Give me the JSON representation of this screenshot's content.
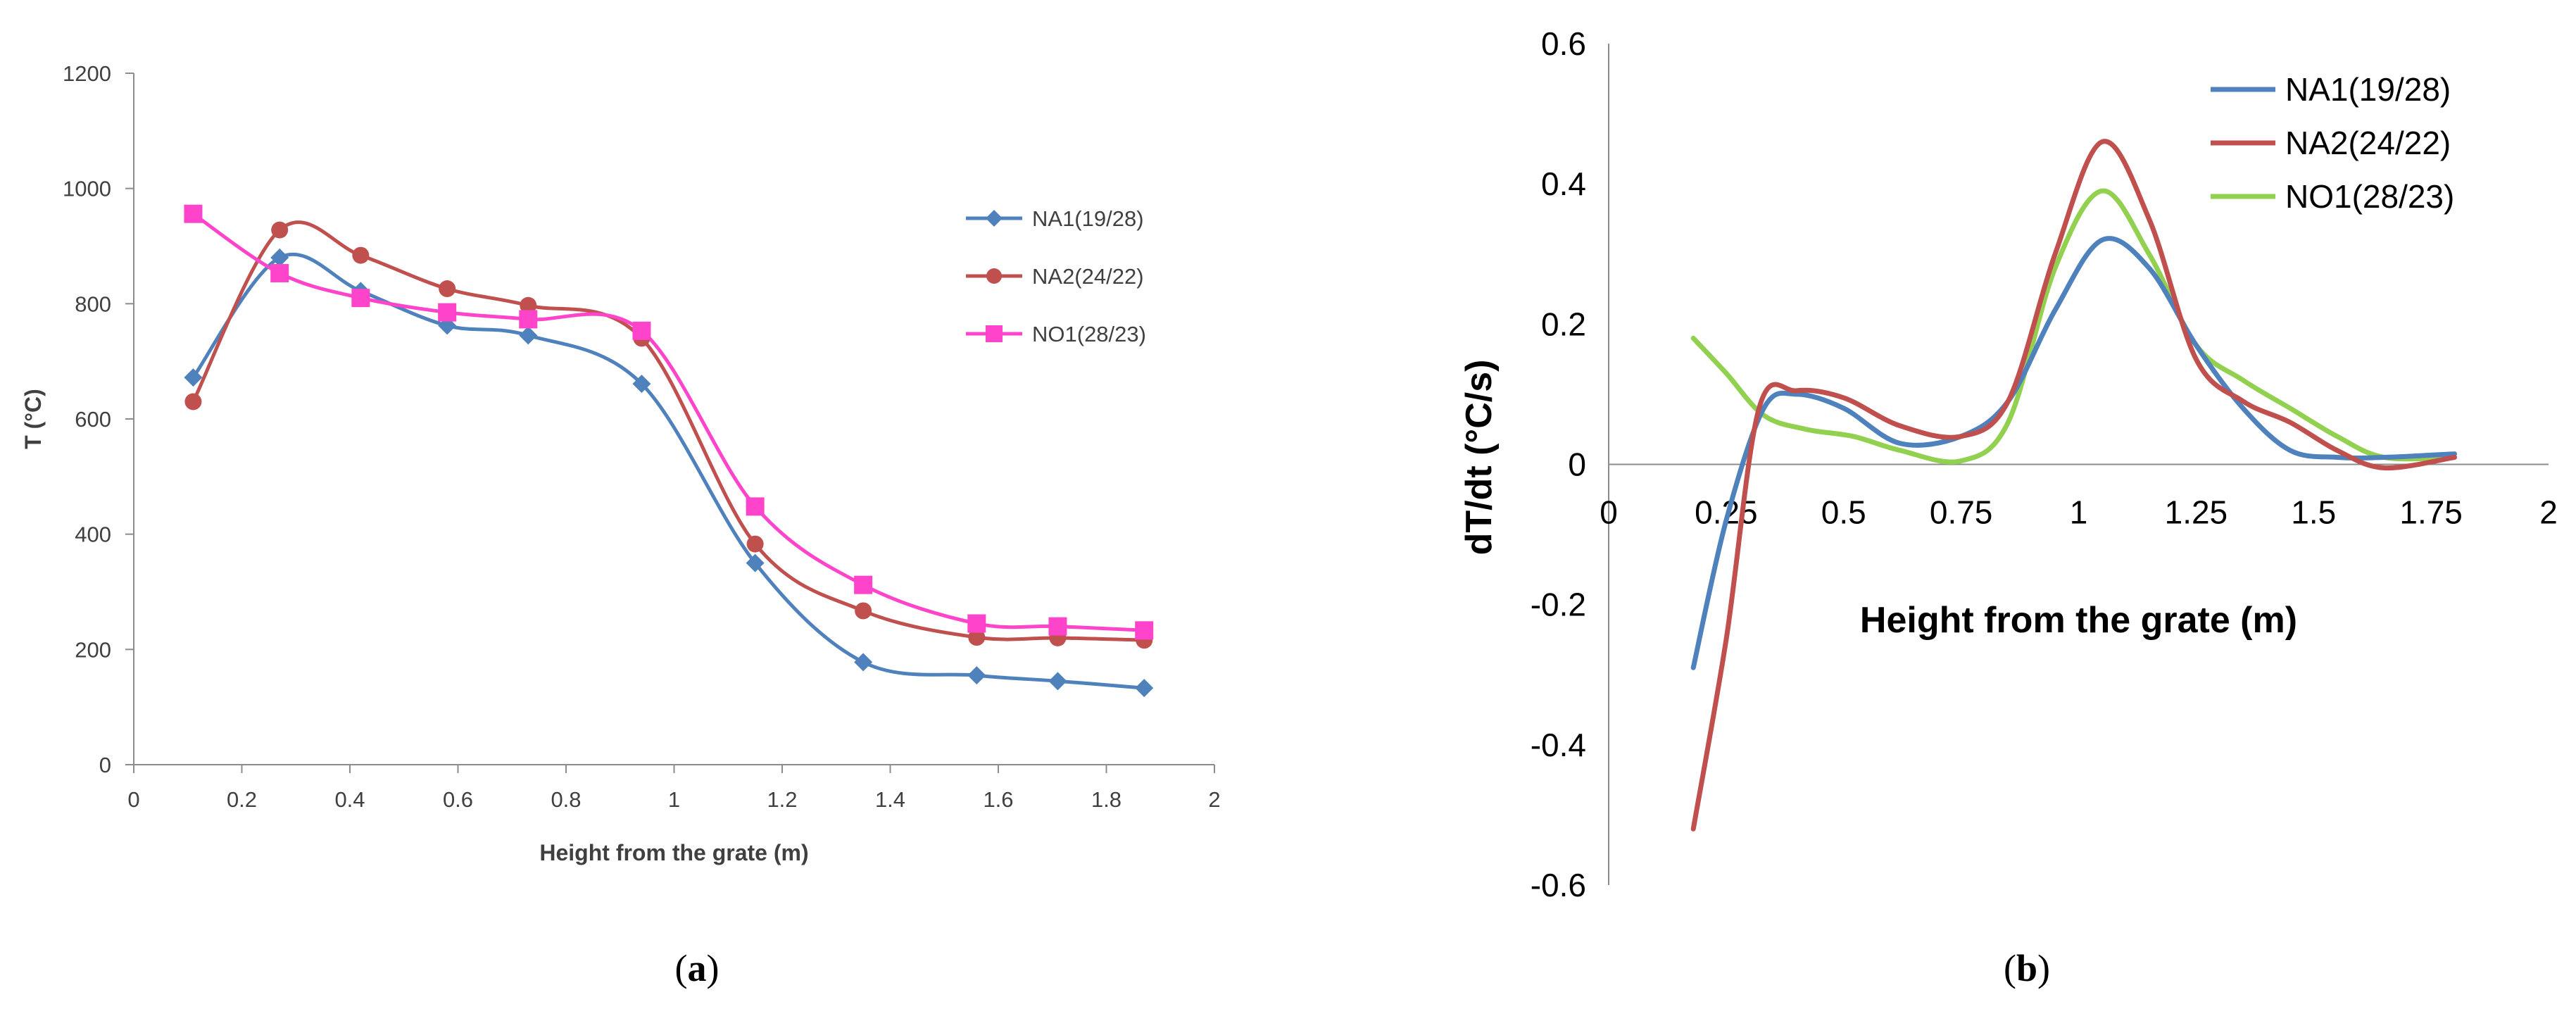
{
  "chart_data": [
    {
      "id": "a",
      "type": "line",
      "smooth": true,
      "title": "",
      "xlabel": "Height from the grate (m)",
      "ylabel": "T (°C)",
      "xlim": [
        0,
        2
      ],
      "ylim": [
        0,
        1200
      ],
      "xticks": [
        0,
        0.2,
        0.4,
        0.6,
        0.8,
        1,
        1.2,
        1.4,
        1.6,
        1.8,
        2
      ],
      "yticks": [
        0,
        200,
        400,
        600,
        800,
        1000,
        1200
      ],
      "xtick_labels": [
        "0",
        "0.2",
        "0.4",
        "0.6",
        "0.8",
        "1",
        "1.2",
        "1.4",
        "1.6",
        "1.8",
        "2"
      ],
      "ytick_labels": [
        "0",
        "200",
        "400",
        "600",
        "800",
        "1000",
        "1200"
      ],
      "legend": "right",
      "caption": "(a)",
      "series": [
        {
          "name": "NA1(19/28)",
          "color": "#4f81bd",
          "marker": "diamond",
          "x": [
            0.11,
            0.27,
            0.42,
            0.58,
            0.73,
            0.94,
            1.15,
            1.35,
            1.56,
            1.71,
            1.87
          ],
          "y": [
            672,
            880,
            822,
            762,
            745,
            661,
            350,
            178,
            155,
            145,
            133
          ]
        },
        {
          "name": "NA2(24/22)",
          "color": "#c0504d",
          "marker": "circle",
          "x": [
            0.11,
            0.27,
            0.42,
            0.58,
            0.73,
            0.94,
            1.15,
            1.35,
            1.56,
            1.71,
            1.87
          ],
          "y": [
            630,
            928,
            884,
            826,
            797,
            740,
            383,
            267,
            221,
            220,
            216
          ]
        },
        {
          "name": "NO1(28/23)",
          "color": "#ff44cc",
          "marker": "square",
          "x": [
            0.11,
            0.27,
            0.42,
            0.58,
            0.73,
            0.94,
            1.15,
            1.35,
            1.56,
            1.71,
            1.87
          ],
          "y": [
            956,
            853,
            810,
            785,
            773,
            753,
            448,
            312,
            245,
            240,
            233
          ]
        }
      ]
    },
    {
      "id": "b",
      "type": "line",
      "smooth": true,
      "title": "",
      "xlabel": "Height from the grate (m)",
      "ylabel": "dT/dt (°C/s)",
      "xlim": [
        0,
        2
      ],
      "ylim": [
        -0.6,
        0.6
      ],
      "xticks": [
        0,
        0.25,
        0.5,
        0.75,
        1,
        1.25,
        1.5,
        1.75,
        2
      ],
      "yticks": [
        -0.6,
        -0.4,
        -0.2,
        0,
        0.2,
        0.4,
        0.6
      ],
      "xtick_labels": [
        "0",
        "0.25",
        "0.5",
        "0.75",
        "1",
        "1.25",
        "1.5",
        "1.75",
        "2"
      ],
      "ytick_labels": [
        "-0.6",
        "-0.4",
        "-0.2",
        "0",
        "0.2",
        "0.4",
        "0.6"
      ],
      "legend": "top-right",
      "caption": "(b)",
      "series": [
        {
          "name": "NA1(19/28)",
          "color": "#4f81bd",
          "x": [
            0.18,
            0.25,
            0.33,
            0.4,
            0.5,
            0.62,
            0.75,
            0.85,
            0.95,
            1.05,
            1.15,
            1.25,
            1.35,
            1.45,
            1.55,
            1.65,
            1.8
          ],
          "y": [
            -0.29,
            -0.08,
            0.08,
            0.1,
            0.08,
            0.03,
            0.04,
            0.09,
            0.22,
            0.32,
            0.28,
            0.17,
            0.08,
            0.02,
            0.01,
            0.01,
            0.015
          ]
        },
        {
          "name": "NA2(24/22)",
          "color": "#c0504d",
          "x": [
            0.18,
            0.25,
            0.32,
            0.4,
            0.5,
            0.62,
            0.75,
            0.85,
            0.95,
            1.05,
            1.15,
            1.25,
            1.35,
            1.45,
            1.55,
            1.65,
            1.8
          ],
          "y": [
            -0.52,
            -0.25,
            0.08,
            0.105,
            0.095,
            0.055,
            0.04,
            0.09,
            0.3,
            0.46,
            0.35,
            0.15,
            0.09,
            0.06,
            0.02,
            -0.005,
            0.01
          ]
        },
        {
          "name": "NO1(28/23)",
          "color": "#92d050",
          "x": [
            0.18,
            0.25,
            0.33,
            0.42,
            0.52,
            0.62,
            0.75,
            0.85,
            0.95,
            1.05,
            1.15,
            1.25,
            1.35,
            1.45,
            1.55,
            1.65,
            1.8
          ],
          "y": [
            0.18,
            0.13,
            0.07,
            0.05,
            0.04,
            0.02,
            0.005,
            0.06,
            0.28,
            0.39,
            0.3,
            0.17,
            0.12,
            0.08,
            0.04,
            0.01,
            0.01
          ]
        }
      ]
    }
  ]
}
